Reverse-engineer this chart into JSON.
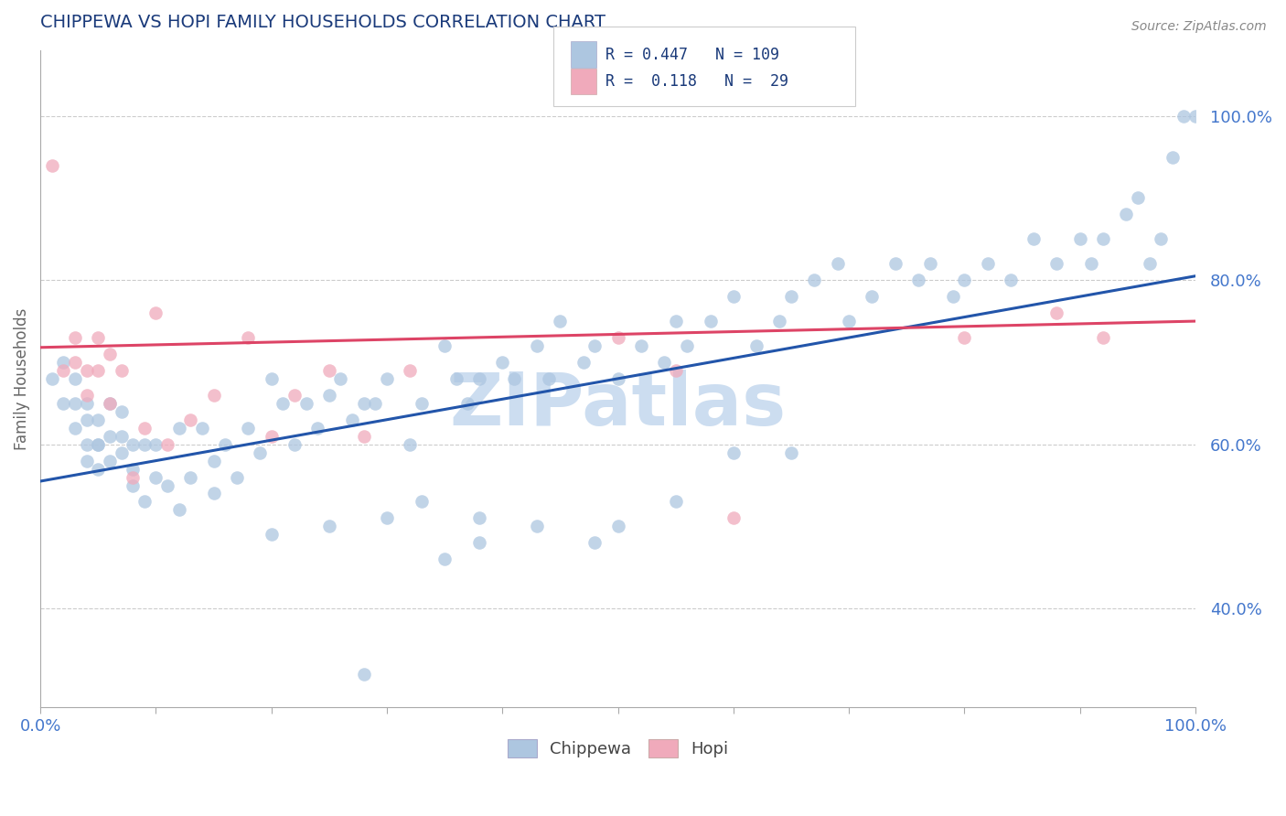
{
  "title": "CHIPPEWA VS HOPI FAMILY HOUSEHOLDS CORRELATION CHART",
  "source_text": "Source: ZipAtlas.com",
  "ylabel": "Family Households",
  "xmin": 0.0,
  "xmax": 1.0,
  "ymin": 0.28,
  "ymax": 1.08,
  "ytick_labels": [
    "40.0%",
    "60.0%",
    "80.0%",
    "100.0%"
  ],
  "ytick_vals": [
    0.4,
    0.6,
    0.8,
    1.0
  ],
  "blue_color": "#adc6e0",
  "pink_color": "#f0aabb",
  "blue_line_color": "#2255aa",
  "pink_line_color": "#dd4466",
  "title_color": "#1a3a7a",
  "ytick_color": "#4477cc",
  "xtick_color": "#4477cc",
  "watermark_color": "#ccddf0",
  "background_color": "#ffffff",
  "blue_trend_y_start": 0.555,
  "blue_trend_y_end": 0.805,
  "pink_trend_y_start": 0.718,
  "pink_trend_y_end": 0.75,
  "chippewa_x": [
    0.01,
    0.02,
    0.02,
    0.03,
    0.03,
    0.03,
    0.04,
    0.04,
    0.04,
    0.04,
    0.05,
    0.05,
    0.05,
    0.05,
    0.06,
    0.06,
    0.06,
    0.07,
    0.07,
    0.07,
    0.08,
    0.08,
    0.08,
    0.09,
    0.09,
    0.1,
    0.1,
    0.11,
    0.12,
    0.12,
    0.13,
    0.14,
    0.15,
    0.15,
    0.16,
    0.17,
    0.18,
    0.19,
    0.2,
    0.21,
    0.22,
    0.23,
    0.24,
    0.25,
    0.26,
    0.27,
    0.28,
    0.29,
    0.3,
    0.32,
    0.33,
    0.35,
    0.36,
    0.37,
    0.38,
    0.4,
    0.41,
    0.43,
    0.44,
    0.45,
    0.47,
    0.48,
    0.5,
    0.52,
    0.54,
    0.55,
    0.56,
    0.58,
    0.6,
    0.62,
    0.64,
    0.65,
    0.67,
    0.69,
    0.7,
    0.72,
    0.74,
    0.76,
    0.77,
    0.79,
    0.8,
    0.82,
    0.84,
    0.86,
    0.88,
    0.9,
    0.91,
    0.92,
    0.94,
    0.95,
    0.96,
    0.97,
    0.98,
    0.99,
    1.0,
    0.35,
    0.3,
    0.25,
    0.2,
    0.38,
    0.5,
    0.55,
    0.6,
    0.65,
    0.48,
    0.43,
    0.38,
    0.33,
    0.28
  ],
  "chippewa_y": [
    0.68,
    0.7,
    0.65,
    0.68,
    0.65,
    0.62,
    0.63,
    0.65,
    0.6,
    0.58,
    0.6,
    0.57,
    0.63,
    0.6,
    0.65,
    0.58,
    0.61,
    0.64,
    0.59,
    0.61,
    0.57,
    0.55,
    0.6,
    0.53,
    0.6,
    0.56,
    0.6,
    0.55,
    0.62,
    0.52,
    0.56,
    0.62,
    0.58,
    0.54,
    0.6,
    0.56,
    0.62,
    0.59,
    0.68,
    0.65,
    0.6,
    0.65,
    0.62,
    0.66,
    0.68,
    0.63,
    0.65,
    0.65,
    0.68,
    0.6,
    0.65,
    0.72,
    0.68,
    0.65,
    0.68,
    0.7,
    0.68,
    0.72,
    0.68,
    0.75,
    0.7,
    0.72,
    0.68,
    0.72,
    0.7,
    0.75,
    0.72,
    0.75,
    0.78,
    0.72,
    0.75,
    0.78,
    0.8,
    0.82,
    0.75,
    0.78,
    0.82,
    0.8,
    0.82,
    0.78,
    0.8,
    0.82,
    0.8,
    0.85,
    0.82,
    0.85,
    0.82,
    0.85,
    0.88,
    0.9,
    0.82,
    0.85,
    0.95,
    1.0,
    1.0,
    0.46,
    0.51,
    0.5,
    0.49,
    0.51,
    0.5,
    0.53,
    0.59,
    0.59,
    0.48,
    0.5,
    0.48,
    0.53,
    0.32
  ],
  "hopi_x": [
    0.01,
    0.02,
    0.03,
    0.03,
    0.04,
    0.04,
    0.05,
    0.05,
    0.06,
    0.06,
    0.07,
    0.08,
    0.09,
    0.1,
    0.11,
    0.13,
    0.15,
    0.18,
    0.2,
    0.22,
    0.25,
    0.28,
    0.32,
    0.5,
    0.55,
    0.6,
    0.8,
    0.88,
    0.92
  ],
  "hopi_y": [
    0.94,
    0.69,
    0.7,
    0.73,
    0.66,
    0.69,
    0.73,
    0.69,
    0.71,
    0.65,
    0.69,
    0.56,
    0.62,
    0.76,
    0.6,
    0.63,
    0.66,
    0.73,
    0.61,
    0.66,
    0.69,
    0.61,
    0.69,
    0.73,
    0.69,
    0.51,
    0.73,
    0.76,
    0.73
  ]
}
